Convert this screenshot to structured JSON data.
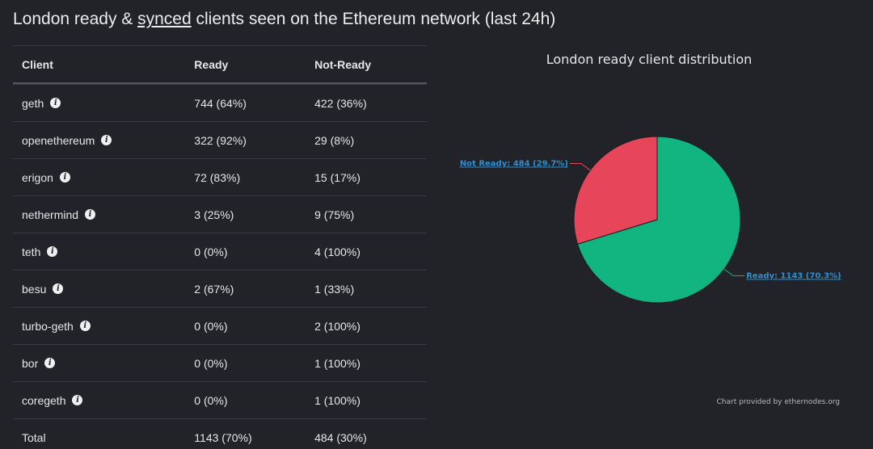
{
  "title": {
    "part1": "London ready & ",
    "link": "synced",
    "part2": " clients seen on the Ethereum network (last 24h)"
  },
  "table": {
    "headers": {
      "client": "Client",
      "ready": "Ready",
      "not_ready": "Not-Ready"
    },
    "rows": [
      {
        "client": "geth",
        "ready": "744 (64%)",
        "not_ready": "422 (36%)"
      },
      {
        "client": "openethereum",
        "ready": "322 (92%)",
        "not_ready": "29 (8%)"
      },
      {
        "client": "erigon",
        "ready": "72 (83%)",
        "not_ready": "15 (17%)"
      },
      {
        "client": "nethermind",
        "ready": "3 (25%)",
        "not_ready": "9 (75%)"
      },
      {
        "client": "teth",
        "ready": "0 (0%)",
        "not_ready": "4 (100%)"
      },
      {
        "client": "besu",
        "ready": "2 (67%)",
        "not_ready": "1 (33%)"
      },
      {
        "client": "turbo-geth",
        "ready": "0 (0%)",
        "not_ready": "2 (100%)"
      },
      {
        "client": "bor",
        "ready": "0 (0%)",
        "not_ready": "1 (100%)"
      },
      {
        "client": "coregeth",
        "ready": "0 (0%)",
        "not_ready": "1 (100%)"
      }
    ],
    "total": {
      "client": "Total",
      "ready": "1143 (70%)",
      "not_ready": "484 (30%)"
    },
    "info_icon": "i"
  },
  "chart_data": {
    "type": "pie",
    "title": "London ready client distribution",
    "slices": [
      {
        "name": "Ready",
        "value": 1143,
        "percent": 70.3,
        "label": "Ready: 1143 (70.3%)",
        "color": "#12b47f"
      },
      {
        "name": "Not Ready",
        "value": 484,
        "percent": 29.7,
        "label": "Not Ready: 484 (29.7%)",
        "color": "#e6455a"
      }
    ],
    "credit": "Chart provided by ethernodes.org"
  },
  "colors": {
    "background": "#222329",
    "ready": "#12b47f",
    "not_ready": "#e6455a",
    "label_link": "#2d8fd0"
  }
}
